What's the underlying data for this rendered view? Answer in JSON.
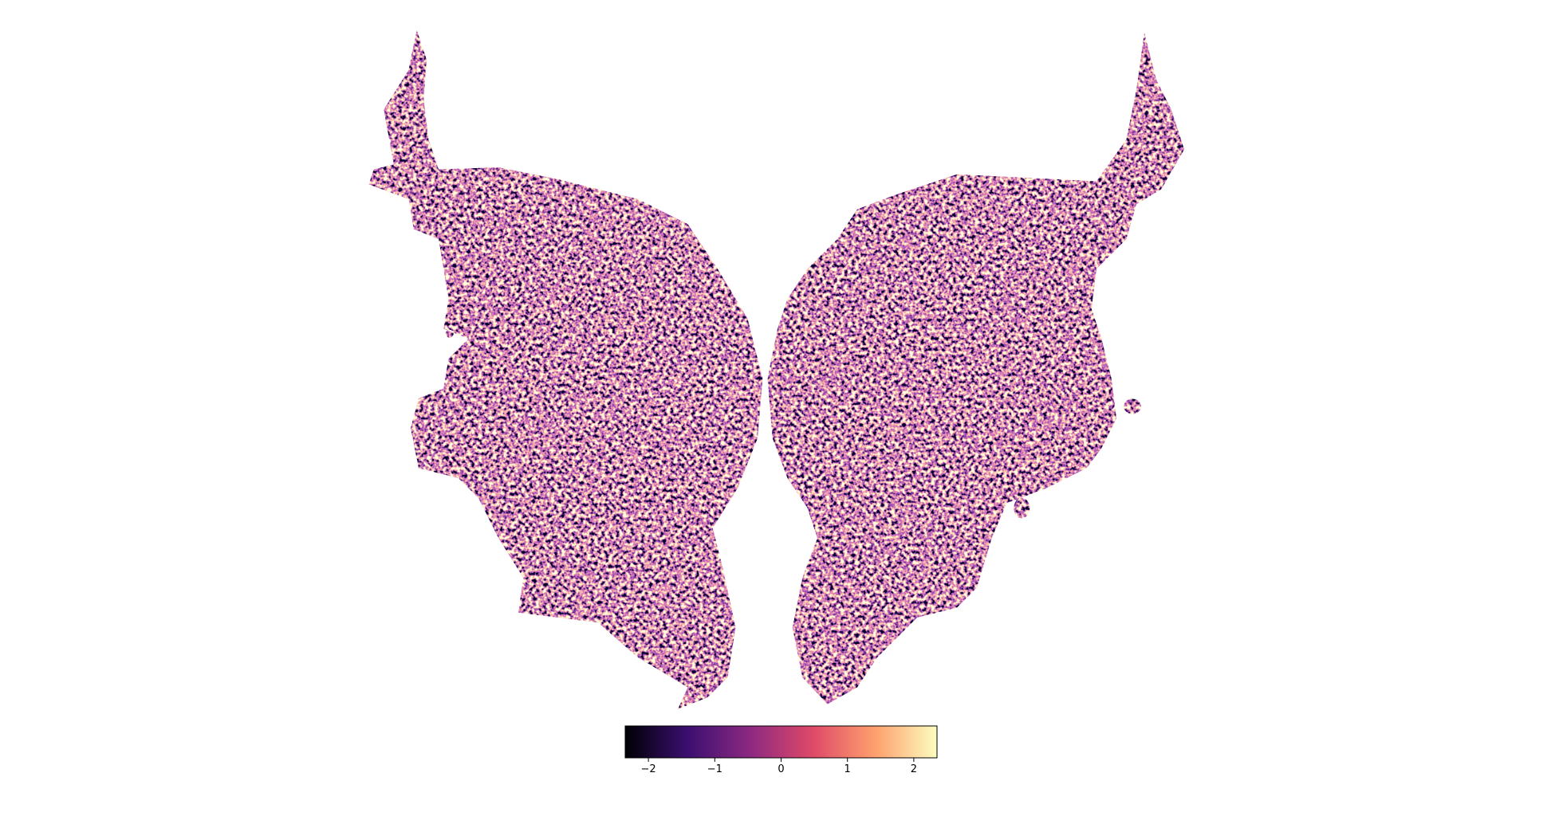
{
  "chart_data": {
    "type": "flatmap",
    "colorbar": {
      "lim": [
        -2.35,
        2.35
      ],
      "ticks": [
        {
          "value": -2,
          "label": "−2"
        },
        {
          "value": -1,
          "label": "−1"
        },
        {
          "value": 0,
          "label": "0"
        },
        {
          "value": 1,
          "label": "1"
        },
        {
          "value": 2,
          "label": "2"
        }
      ],
      "colors": [
        "#000004",
        "#3b0f70",
        "#8c2981",
        "#de4968",
        "#fe9f6d",
        "#fcfdbf"
      ]
    }
  }
}
